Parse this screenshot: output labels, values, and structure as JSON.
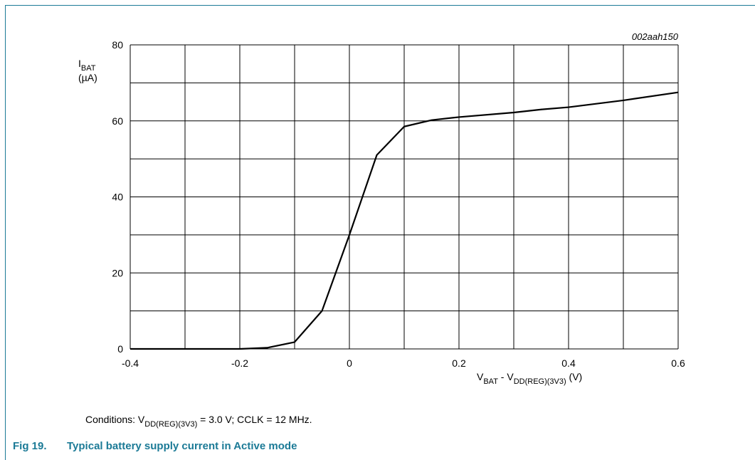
{
  "chart_data": {
    "type": "line",
    "code": "002aah150",
    "y_label": {
      "main": "I",
      "sub": "BAT",
      "unit": "(µA)"
    },
    "x_label": [
      {
        "text": "V",
        "sub": false
      },
      {
        "text": "BAT",
        "sub": true
      },
      {
        "text": " - V",
        "sub": false
      },
      {
        "text": "DD(REG)(3V3)",
        "sub": true
      },
      {
        "text": " (V)",
        "sub": false
      }
    ],
    "x": [
      -0.4,
      -0.3,
      -0.2,
      -0.15,
      -0.1,
      -0.05,
      0,
      0.05,
      0.1,
      0.15,
      0.2,
      0.3,
      0.35,
      0.4,
      0.5,
      0.6
    ],
    "values": [
      0,
      0,
      0,
      0.3,
      1.8,
      10,
      30,
      51,
      58.5,
      60.2,
      61,
      62.2,
      63,
      63.6,
      65.4,
      67.5
    ],
    "color": "#000000",
    "xlim": [
      -0.4,
      0.6
    ],
    "xticks": [
      -0.4,
      -0.2,
      0,
      0.2,
      0.4,
      0.6
    ],
    "xminor": [
      -0.3,
      -0.1,
      0.1,
      0.3,
      0.5
    ],
    "ylim": [
      0,
      80
    ],
    "yticks": [
      0,
      20,
      40,
      60,
      80
    ],
    "yminor": [
      10,
      30,
      50,
      70
    ],
    "grid": true,
    "conditions": [
      {
        "text": "Conditions: V",
        "sub": false
      },
      {
        "text": "DD(REG)(3V3)",
        "sub": true
      },
      {
        "text": " = 3.0 V; CCLK = 12 MHz.",
        "sub": false
      }
    ],
    "figure_number": "Fig 19.",
    "figure_title": "Typical battery supply current in Active mode"
  }
}
